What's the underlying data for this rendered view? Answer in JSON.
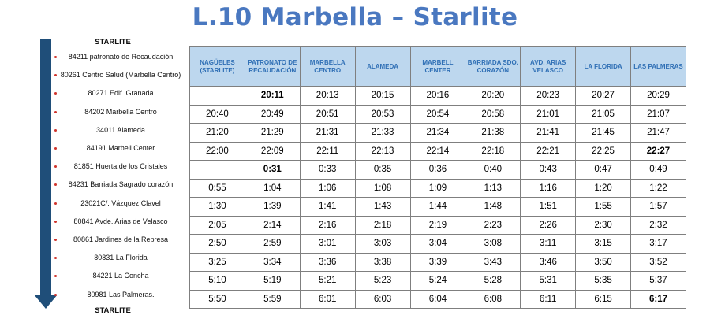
{
  "title": "L.10 Marbella – Starlite",
  "route": {
    "top_label": "STARLITE",
    "bottom_label": "STARLITE",
    "stops": [
      "84211 patronato de Recaudación",
      "80261 Centro Salud (Marbella Centro)",
      "80271 Edif. Granada",
      "84202 Marbella Centro",
      "34011 Alameda",
      "84191 Marbell Center",
      "81851 Huerta de los Cristales",
      "84231 Barriada Sagrado corazón",
      "23021C/. Vázquez Clavel",
      "80841 Avde. Arias de Velasco",
      "80861 Jardines de la Represa",
      "80831 La Florida",
      "84221 La Concha",
      "80981 Las Palmeras."
    ]
  },
  "table": {
    "headers": [
      "NAGÜELES (STARLITE)",
      "PATRONATO DE RECAUDACIÓN",
      "MARBELLA CENTRO",
      "ALAMEDA",
      "MARBELL CENTER",
      "BARRIADA SDO. CORAZÓN",
      "AVD. ARIAS VELASCO",
      "LA FLORIDA",
      "LAS PALMERAS"
    ],
    "rows": [
      [
        "",
        "20:11",
        "20:13",
        "20:15",
        "20:16",
        "20:20",
        "20:23",
        "20:27",
        "20:29"
      ],
      [
        "20:40",
        "20:49",
        "20:51",
        "20:53",
        "20:54",
        "20:58",
        "21:01",
        "21:05",
        "21:07"
      ],
      [
        "21:20",
        "21:29",
        "21:31",
        "21:33",
        "21:34",
        "21:38",
        "21:41",
        "21:45",
        "21:47"
      ],
      [
        "22:00",
        "22:09",
        "22:11",
        "22:13",
        "22:14",
        "22:18",
        "22:21",
        "22:25",
        "22:27"
      ],
      [
        "",
        "0:31",
        "0:33",
        "0:35",
        "0:36",
        "0:40",
        "0:43",
        "0:47",
        "0:49"
      ],
      [
        "0:55",
        "1:04",
        "1:06",
        "1:08",
        "1:09",
        "1:13",
        "1:16",
        "1:20",
        "1:22"
      ],
      [
        "1:30",
        "1:39",
        "1:41",
        "1:43",
        "1:44",
        "1:48",
        "1:51",
        "1:55",
        "1:57"
      ],
      [
        "2:05",
        "2:14",
        "2:16",
        "2:18",
        "2:19",
        "2:23",
        "2:26",
        "2:30",
        "2:32"
      ],
      [
        "2:50",
        "2:59",
        "3:01",
        "3:03",
        "3:04",
        "3:08",
        "3:11",
        "3:15",
        "3:17"
      ],
      [
        "3:25",
        "3:34",
        "3:36",
        "3:38",
        "3:39",
        "3:43",
        "3:46",
        "3:50",
        "3:52"
      ],
      [
        "5:10",
        "5:19",
        "5:21",
        "5:23",
        "5:24",
        "5:28",
        "5:31",
        "5:35",
        "5:37"
      ],
      [
        "5:50",
        "5:59",
        "6:01",
        "6:03",
        "6:04",
        "6:08",
        "6:11",
        "6:15",
        "6:17"
      ]
    ],
    "bold_cells": [
      "0.1",
      "3.8",
      "4.1",
      "11.8"
    ]
  }
}
